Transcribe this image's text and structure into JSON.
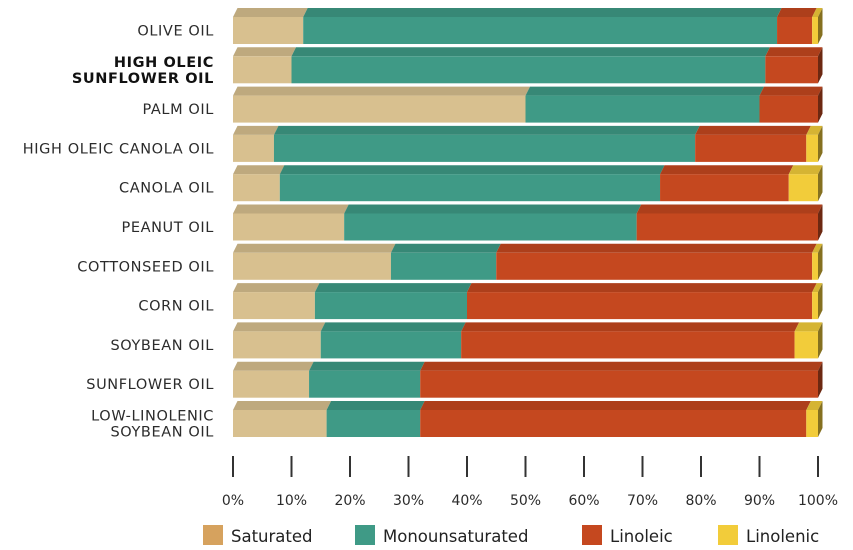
{
  "chart_data": {
    "type": "bar",
    "orientation": "horizontal",
    "stacked": true,
    "categories": [
      {
        "label": [
          "OLIVE OIL"
        ],
        "bold": false
      },
      {
        "label": [
          "HIGH OLEIC",
          "SUNFLOWER OIL"
        ],
        "bold": true
      },
      {
        "label": [
          "PALM OIL"
        ],
        "bold": false
      },
      {
        "label": [
          "HIGH OLEIC CANOLA OIL"
        ],
        "bold": false
      },
      {
        "label": [
          "CANOLA OIL"
        ],
        "bold": false
      },
      {
        "label": [
          "PEANUT OIL"
        ],
        "bold": false
      },
      {
        "label": [
          "COTTONSEED OIL"
        ],
        "bold": false
      },
      {
        "label": [
          "CORN OIL"
        ],
        "bold": false
      },
      {
        "label": [
          "SOYBEAN OIL"
        ],
        "bold": false
      },
      {
        "label": [
          "SUNFLOWER OIL"
        ],
        "bold": false
      },
      {
        "label": [
          "LOW-LINOLENIC",
          "SOYBEAN OIL"
        ],
        "bold": false
      }
    ],
    "series": [
      {
        "name": "Saturated",
        "color": "#d8c08f",
        "values": [
          12,
          10,
          50,
          7,
          8,
          19,
          27,
          14,
          15,
          13,
          16
        ]
      },
      {
        "name": "Monounsaturated",
        "color": "#3f9a86",
        "values": [
          81,
          81,
          40,
          72,
          65,
          50,
          18,
          26,
          24,
          19,
          16
        ]
      },
      {
        "name": "Linoleic",
        "color": "#c5481f",
        "values": [
          6,
          9,
          10,
          19,
          22,
          31,
          54,
          59,
          57,
          68,
          66
        ]
      },
      {
        "name": "Linolenic",
        "color": "#f2cc3a",
        "values": [
          1,
          0,
          0,
          2,
          5,
          0,
          1,
          1,
          4,
          0,
          2
        ]
      }
    ],
    "xlim": [
      0,
      100
    ],
    "xticks": [
      "0%",
      "10%",
      "20%",
      "30%",
      "40%",
      "50%",
      "60%",
      "70%",
      "80%",
      "90%",
      "100%"
    ],
    "xlabel": "",
    "ylabel": "",
    "legend_position": "bottom",
    "legend_swatch_colors": [
      "#d6a25e",
      "#3f9a86",
      "#c5481f",
      "#f2cc3a"
    ],
    "grid": false
  }
}
